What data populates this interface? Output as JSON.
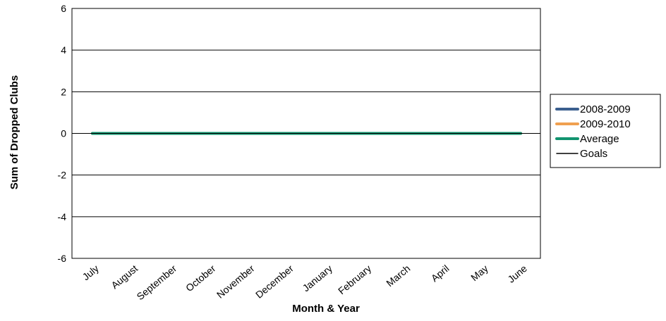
{
  "chart_data": {
    "type": "line",
    "title": "",
    "xlabel": "Month & Year",
    "ylabel": "Sum of Dropped Clubs",
    "ylim": [
      -6,
      6
    ],
    "yticks": [
      6,
      4,
      2,
      0,
      -2,
      -4,
      -6
    ],
    "grid": true,
    "legend_position": "right",
    "categories": [
      "July",
      "August",
      "September",
      "October",
      "November",
      "December",
      "January",
      "February",
      "March",
      "April",
      "May",
      "June"
    ],
    "series": [
      {
        "name": "2008-2009",
        "color": "#3b5f8f",
        "values": [
          0,
          0,
          0,
          0,
          0,
          0,
          0,
          0,
          0,
          0,
          0,
          0
        ]
      },
      {
        "name": "2009-2010",
        "color": "#f0a050",
        "values": [
          0,
          0,
          0,
          0,
          0,
          0,
          0,
          0,
          0,
          0,
          0,
          0
        ]
      },
      {
        "name": "Average",
        "color": "#12946f",
        "values": [
          0,
          0,
          0,
          0,
          0,
          0,
          0,
          0,
          0,
          0,
          0,
          0
        ]
      },
      {
        "name": "Goals",
        "color": "#000000",
        "values": [
          0,
          0,
          0,
          0,
          0,
          0,
          0,
          0,
          0,
          0,
          0,
          0
        ]
      }
    ]
  }
}
